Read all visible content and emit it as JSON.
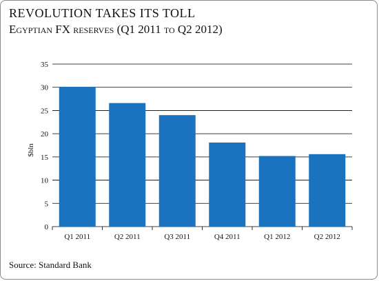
{
  "header": {
    "title": "REVOLUTION TAKES ITS TOLL",
    "subtitle": "Egyptian FX reserves (Q1 2011 to Q2 2012)"
  },
  "footer": {
    "source": "Source: Standard Bank"
  },
  "colors": {
    "bar": "#1b72be",
    "grid": "#000000",
    "text": "#111111"
  },
  "chart_data": {
    "type": "bar",
    "title": "",
    "xlabel": "",
    "ylabel": "$bln",
    "categories": [
      "Q1 2011",
      "Q2 2011",
      "Q3 2011",
      "Q4 2011",
      "Q1 2012",
      "Q2 2012"
    ],
    "values": [
      30.1,
      26.6,
      24.0,
      18.1,
      15.2,
      15.6
    ],
    "ylim": [
      0,
      35
    ],
    "yticks": [
      0,
      5,
      10,
      15,
      20,
      25,
      30,
      35
    ],
    "grid": true,
    "legend": "none"
  }
}
